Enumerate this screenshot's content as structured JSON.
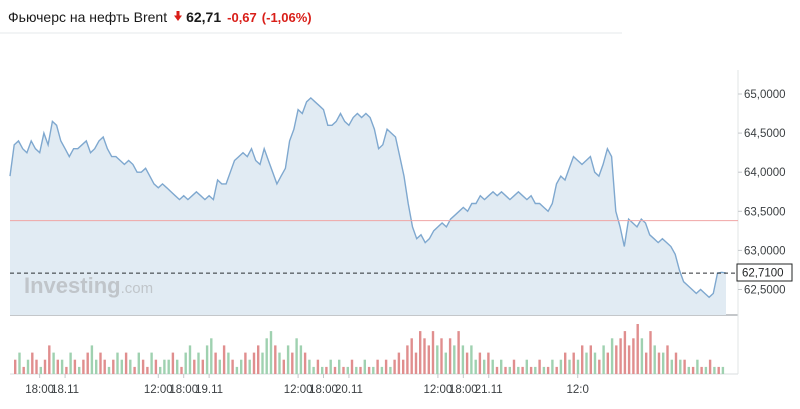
{
  "header": {
    "title": "Фьючерс на нефть Brent",
    "price": "62,71",
    "change": "-0,67",
    "change_pct": "(-1,06%)",
    "down_color": "#d91e18",
    "arrow_icon": "down-arrow-icon"
  },
  "watermark": {
    "brand": "Investing",
    "suffix": ".com"
  },
  "chart_data": {
    "type": "area",
    "ylim": [
      62.1,
      65.3
    ],
    "y_ticks": [
      "65,0000",
      "64,5000",
      "64,0000",
      "63,5000",
      "63,0000",
      "62,5000"
    ],
    "y_tick_values": [
      65.0,
      64.5,
      64.0,
      63.5,
      63.0,
      62.5
    ],
    "x_tick_labels": [
      "18:00",
      "18.11",
      "12:00",
      "18:00",
      "19.11",
      "12:00",
      "18:00",
      "20.11",
      "12:00",
      "18:00",
      "21.11",
      "12:0"
    ],
    "x_tick_positions": [
      7,
      13,
      35,
      41,
      47,
      68,
      74,
      80,
      101,
      107,
      113,
      134
    ],
    "last_price": 62.71,
    "last_price_label": "62,7100",
    "reference_price": 63.38,
    "colors": {
      "line": "#7fa8cf",
      "area": "#e1ebf3",
      "reference_line": "#f0a5a5",
      "volume_up": "#9fd1b0",
      "volume_down": "#e08e8e"
    },
    "price_series": [
      63.95,
      64.35,
      64.4,
      64.3,
      64.25,
      64.4,
      64.3,
      64.25,
      64.5,
      64.35,
      64.65,
      64.6,
      64.4,
      64.3,
      64.2,
      64.3,
      64.3,
      64.35,
      64.4,
      64.25,
      64.3,
      64.4,
      64.45,
      64.3,
      64.2,
      64.2,
      64.15,
      64.1,
      64.15,
      64.1,
      64.0,
      64.0,
      64.05,
      63.95,
      63.85,
      63.8,
      63.85,
      63.8,
      63.75,
      63.7,
      63.65,
      63.7,
      63.65,
      63.7,
      63.75,
      63.7,
      63.65,
      63.7,
      63.65,
      63.9,
      63.85,
      63.85,
      64.0,
      64.15,
      64.2,
      64.25,
      64.2,
      64.3,
      64.15,
      64.1,
      64.3,
      64.15,
      64.0,
      63.85,
      63.95,
      64.05,
      64.4,
      64.55,
      64.8,
      64.75,
      64.9,
      64.95,
      64.9,
      64.85,
      64.8,
      64.6,
      64.6,
      64.65,
      64.75,
      64.65,
      64.6,
      64.7,
      64.75,
      64.7,
      64.75,
      64.7,
      64.55,
      64.3,
      64.35,
      64.55,
      64.5,
      64.45,
      64.2,
      63.95,
      63.6,
      63.3,
      63.15,
      63.2,
      63.1,
      63.15,
      63.25,
      63.3,
      63.35,
      63.3,
      63.4,
      63.45,
      63.5,
      63.55,
      63.5,
      63.6,
      63.6,
      63.7,
      63.65,
      63.7,
      63.75,
      63.7,
      63.75,
      63.7,
      63.65,
      63.7,
      63.75,
      63.7,
      63.65,
      63.7,
      63.6,
      63.6,
      63.55,
      63.5,
      63.6,
      63.85,
      63.95,
      63.9,
      64.05,
      64.2,
      64.15,
      64.1,
      64.15,
      64.2,
      64.0,
      63.95,
      64.1,
      64.3,
      64.2,
      63.5,
      63.3,
      63.05,
      63.4,
      63.35,
      63.3,
      63.4,
      63.35,
      63.2,
      63.15,
      63.1,
      63.15,
      63.1,
      63.05,
      62.95,
      62.75,
      62.6,
      62.55,
      62.5,
      62.45,
      62.5,
      62.45,
      62.4,
      62.45,
      62.71,
      62.72,
      62.71
    ],
    "volume_series": [
      2,
      3,
      1,
      2,
      3,
      2,
      1,
      2,
      4,
      3,
      2,
      2,
      1,
      3,
      2,
      1,
      2,
      3,
      4,
      2,
      3,
      2,
      1,
      2,
      3,
      2,
      3,
      2,
      1,
      3,
      2,
      1,
      3,
      2,
      1,
      2,
      2,
      3,
      2,
      1,
      3,
      4,
      2,
      3,
      2,
      4,
      5,
      3,
      2,
      4,
      3,
      2,
      1,
      2,
      3,
      2,
      3,
      4,
      3,
      5,
      6,
      4,
      3,
      2,
      4,
      3,
      5,
      4,
      3,
      2,
      1,
      2,
      1,
      1,
      2,
      1,
      2,
      1,
      1,
      2,
      1,
      1,
      2,
      1,
      1,
      2,
      1,
      2,
      1,
      2,
      3,
      2,
      4,
      5,
      3,
      6,
      5,
      4,
      6,
      4,
      5,
      3,
      5,
      4,
      6,
      4,
      3,
      4,
      2,
      3,
      2,
      3,
      2,
      1,
      2,
      1,
      1,
      2,
      1,
      1,
      2,
      1,
      1,
      2,
      1,
      1,
      2,
      1,
      2,
      3,
      2,
      3,
      2,
      4,
      3,
      4,
      3,
      2,
      4,
      3,
      5,
      4,
      5,
      6,
      4,
      5,
      7,
      5,
      3,
      6,
      4,
      3,
      3,
      4,
      2,
      3,
      2,
      2,
      1,
      1,
      2,
      1,
      1,
      2,
      1,
      1,
      1
    ],
    "volume_down": [
      1,
      0,
      1,
      0,
      1,
      1,
      0,
      1,
      1,
      0,
      1,
      0,
      1,
      0,
      1,
      0,
      1,
      1,
      0,
      0,
      1,
      1,
      0,
      1,
      0,
      0,
      1,
      0,
      1,
      0,
      1,
      1,
      0,
      1,
      0,
      0,
      0,
      1,
      0,
      1,
      0,
      0,
      1,
      0,
      1,
      0,
      0,
      1,
      0,
      1,
      0,
      1,
      0,
      0,
      1,
      0,
      1,
      1,
      0,
      0,
      0,
      1,
      0,
      1,
      0,
      1,
      0,
      0,
      1,
      0,
      0,
      1,
      0,
      1,
      0,
      1,
      0,
      1,
      0,
      1,
      0,
      1,
      0,
      1,
      0,
      1,
      0,
      1,
      0,
      1,
      1,
      1,
      1,
      1,
      1,
      1,
      1,
      1,
      1,
      0,
      1,
      0,
      1,
      0,
      1,
      0,
      1,
      0,
      0,
      1,
      0,
      1,
      0,
      1,
      0,
      1,
      0,
      1,
      0,
      1,
      0,
      1,
      0,
      1,
      0,
      1,
      0,
      1,
      0,
      1,
      0,
      1,
      0,
      1,
      0,
      1,
      0,
      1,
      0,
      1,
      0,
      1,
      1,
      1,
      1,
      1,
      1,
      0,
      1,
      1,
      0,
      1,
      0,
      1,
      0,
      1,
      0,
      1,
      0,
      1,
      0,
      1,
      0,
      1,
      0,
      1,
      0
    ]
  }
}
